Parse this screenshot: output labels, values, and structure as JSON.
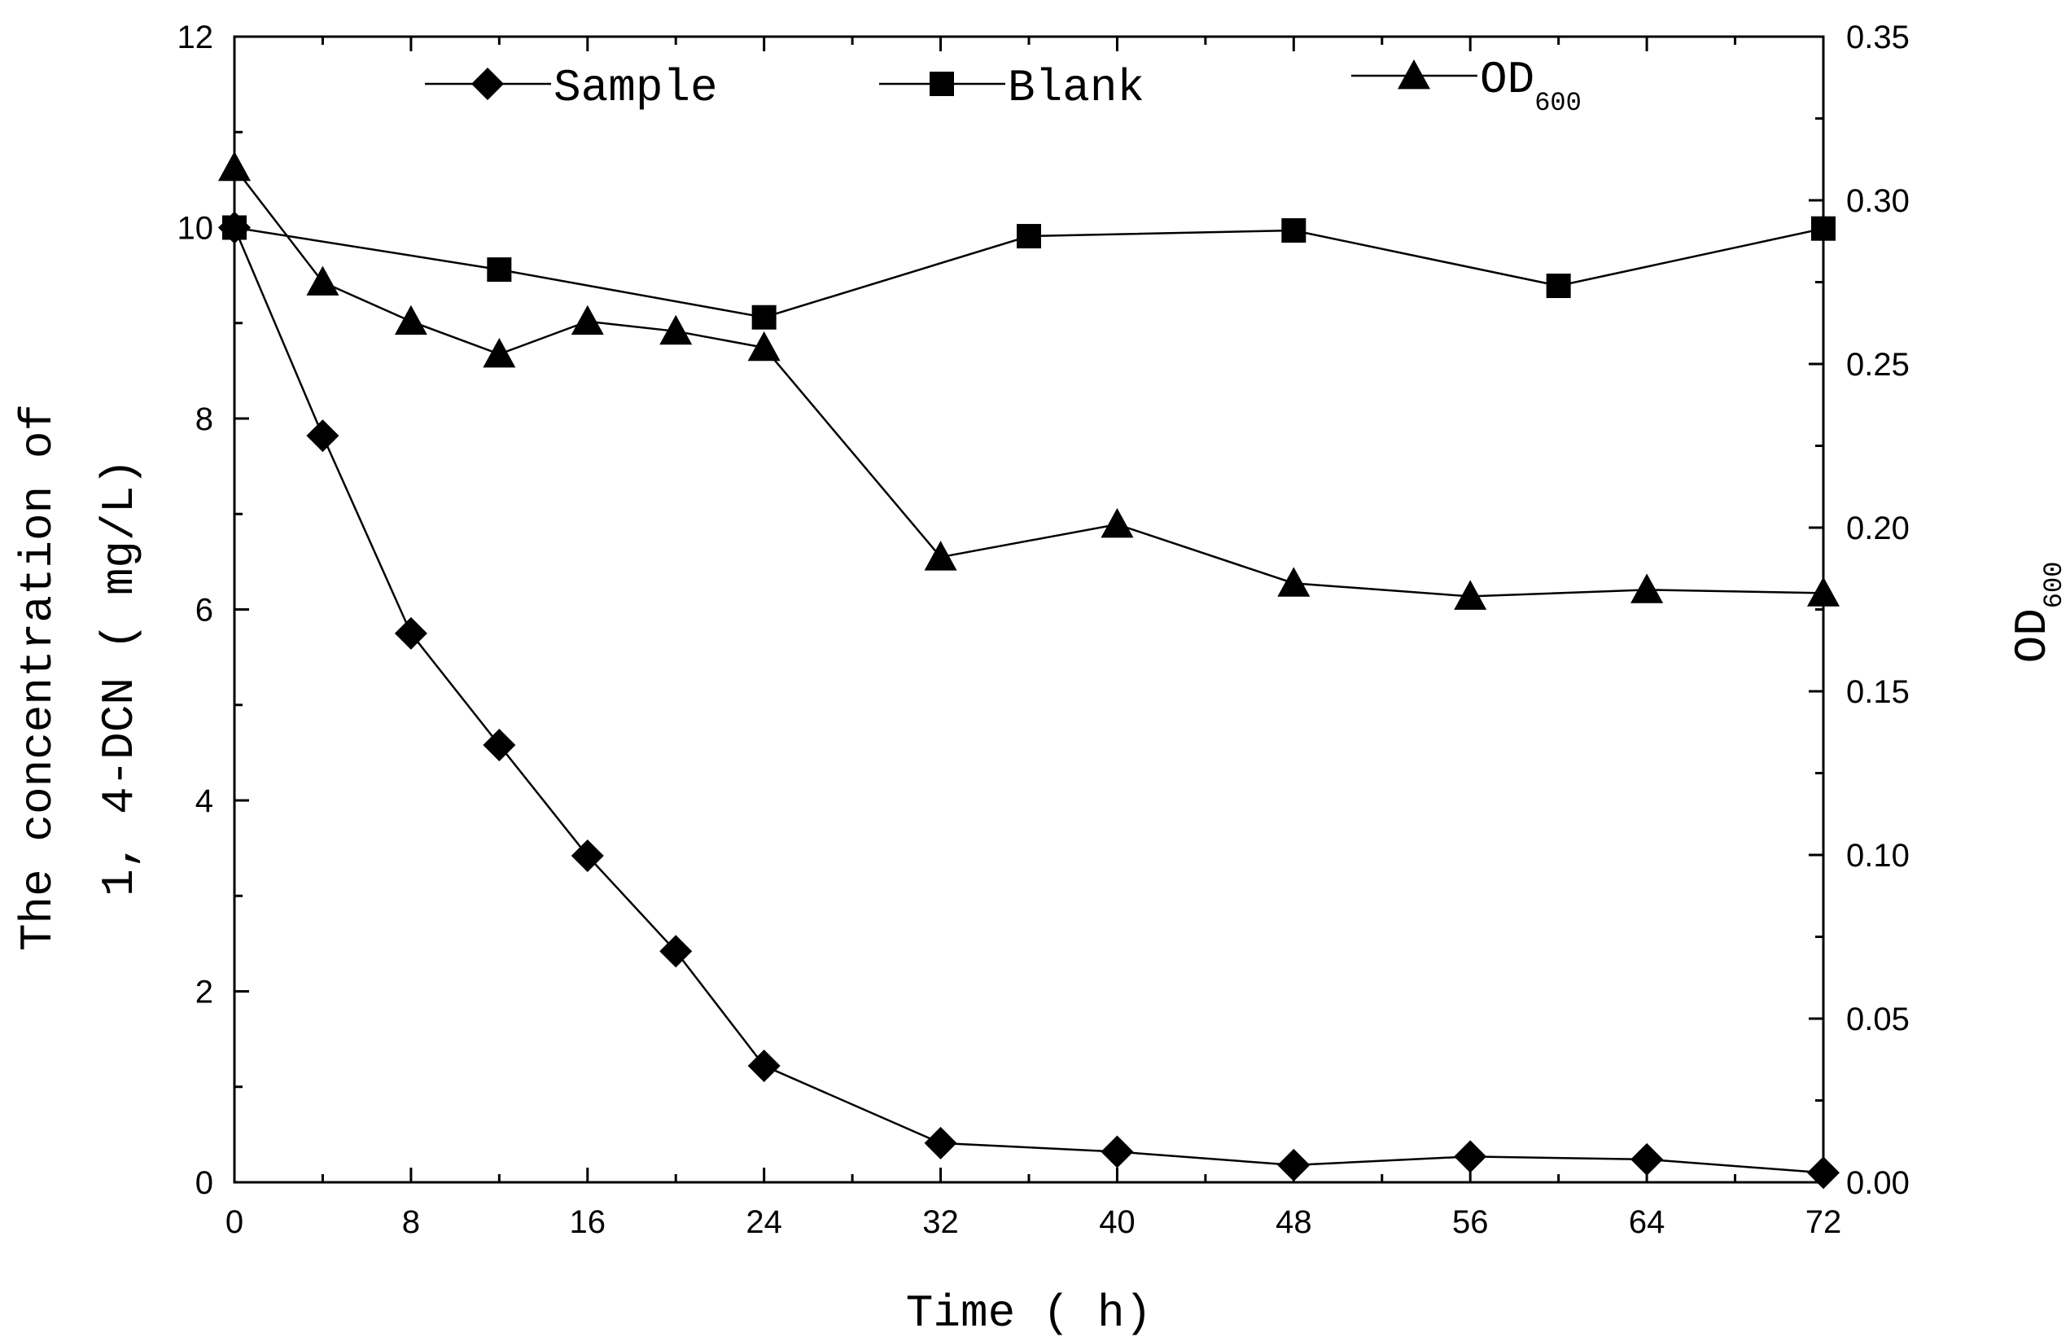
{
  "chart_data": {
    "type": "line",
    "x_ticks": [
      0,
      8,
      16,
      24,
      32,
      40,
      48,
      56,
      64,
      72
    ],
    "xlim": [
      0,
      72
    ],
    "xlabel": "Time ( h)",
    "y_left": {
      "label_line1": "The concentration of",
      "label_line2": "1, 4-DCN ( mg/L)",
      "lim": [
        0,
        12
      ],
      "ticks": [
        0,
        2,
        4,
        6,
        8,
        10,
        12
      ]
    },
    "y_right": {
      "label_main": "OD",
      "label_sub": "600",
      "lim": [
        0,
        0.35
      ],
      "ticks": [
        "0.00",
        "0.05",
        "0.10",
        "0.15",
        "0.20",
        "0.25",
        "0.30",
        "0.35"
      ]
    },
    "series": [
      {
        "name": "Sample",
        "axis": "left",
        "marker": "diamond",
        "x": [
          0,
          4,
          8,
          12,
          16,
          20,
          24,
          32,
          40,
          48,
          56,
          64,
          72
        ],
        "y": [
          10.0,
          7.82,
          5.75,
          4.58,
          3.42,
          2.42,
          1.22,
          0.41,
          0.32,
          0.18,
          0.27,
          0.24,
          0.1
        ]
      },
      {
        "name": "Blank",
        "axis": "left",
        "marker": "square",
        "x": [
          0,
          12,
          24,
          36,
          48,
          60,
          72
        ],
        "y": [
          10.0,
          9.56,
          9.06,
          9.91,
          9.97,
          9.39,
          9.99
        ]
      },
      {
        "name": "OD",
        "name_sub": "600",
        "axis": "right",
        "marker": "triangle",
        "x": [
          0,
          4,
          8,
          12,
          16,
          20,
          24,
          32,
          40,
          48,
          56,
          64,
          72
        ],
        "y": [
          0.31,
          0.275,
          0.263,
          0.253,
          0.263,
          0.26,
          0.255,
          0.191,
          0.201,
          0.183,
          0.179,
          0.181,
          0.18
        ]
      }
    ]
  }
}
